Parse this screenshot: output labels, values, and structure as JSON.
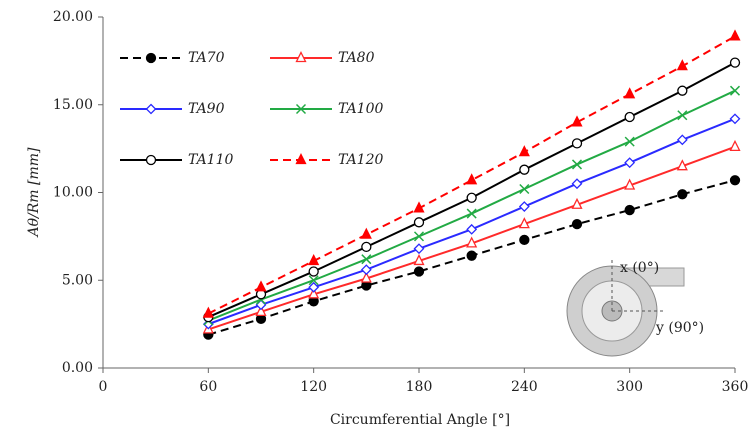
{
  "chart_data": {
    "type": "line",
    "x_label": "Circumferential Angle [°]",
    "y_label": "Aθ/Rm [mm]",
    "x": [
      60,
      90,
      120,
      150,
      180,
      210,
      240,
      270,
      300,
      330,
      360
    ],
    "xlim": [
      0,
      360
    ],
    "xticks": [
      0,
      60,
      120,
      180,
      240,
      300,
      360
    ],
    "ylim": [
      0,
      20
    ],
    "yticks": [
      {
        "value": 0,
        "label": "0.00"
      },
      {
        "value": 5,
        "label": "5.00"
      },
      {
        "value": 10,
        "label": "10.00"
      },
      {
        "value": 15,
        "label": "15.00"
      },
      {
        "value": 20,
        "label": "20.00"
      }
    ],
    "grid": false,
    "legend": "upper left",
    "annotations": [
      "x (0°)",
      "y (90°)"
    ],
    "series": [
      {
        "name": "TA70",
        "color": "#000000",
        "dash": true,
        "marker": "filled-circle",
        "values": [
          1.9,
          2.8,
          3.8,
          4.7,
          5.5,
          6.4,
          7.3,
          8.2,
          9.0,
          9.9,
          10.7
        ]
      },
      {
        "name": "TA80",
        "color": "#ff2a2a",
        "dash": false,
        "marker": "open-triangle",
        "values": [
          2.2,
          3.2,
          4.2,
          5.1,
          6.1,
          7.1,
          8.2,
          9.3,
          10.4,
          11.5,
          12.6
        ]
      },
      {
        "name": "TA90",
        "color": "#2a2aff",
        "dash": false,
        "marker": "open-diamond",
        "values": [
          2.5,
          3.6,
          4.6,
          5.6,
          6.8,
          7.9,
          9.2,
          10.5,
          11.7,
          13.0,
          14.2
        ]
      },
      {
        "name": "TA100",
        "color": "#22aa44",
        "dash": false,
        "marker": "cross",
        "values": [
          2.7,
          3.9,
          5.0,
          6.2,
          7.5,
          8.8,
          10.2,
          11.6,
          12.9,
          14.4,
          15.8
        ]
      },
      {
        "name": "TA110",
        "color": "#000000",
        "dash": false,
        "marker": "open-circle",
        "values": [
          2.9,
          4.2,
          5.5,
          6.9,
          8.3,
          9.7,
          11.3,
          12.8,
          14.3,
          15.8,
          17.4
        ]
      },
      {
        "name": "TA120",
        "color": "#ff0000",
        "dash": true,
        "marker": "filled-triangle",
        "values": [
          3.1,
          4.6,
          6.1,
          7.6,
          9.1,
          10.7,
          12.3,
          14.0,
          15.6,
          17.2,
          18.9
        ]
      }
    ]
  }
}
